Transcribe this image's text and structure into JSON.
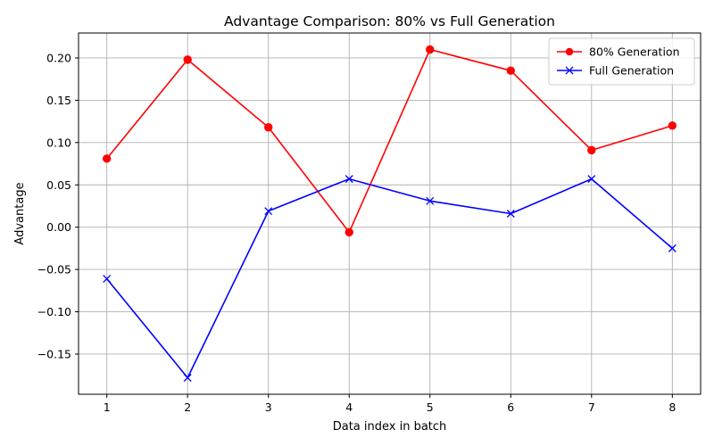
{
  "chart_data": {
    "type": "line",
    "title": "Advantage Comparison: 80% vs Full Generation",
    "xlabel": "Data index in batch",
    "ylabel": "Advantage",
    "x": [
      1,
      2,
      3,
      4,
      5,
      6,
      7,
      8
    ],
    "x_ticks": [
      "1",
      "2",
      "3",
      "4",
      "5",
      "6",
      "7",
      "8"
    ],
    "y_ticks": [
      "0.20",
      "0.15",
      "0.10",
      "0.05",
      "0.00",
      "−0.05",
      "−0.10",
      "−0.15"
    ],
    "y_tick_values": [
      0.2,
      0.15,
      0.1,
      0.05,
      0.0,
      -0.05,
      -0.1,
      -0.15
    ],
    "xlim": [
      0.65,
      8.35
    ],
    "ylim": [
      -0.1975,
      0.2295
    ],
    "grid": true,
    "legend_position": "top-right",
    "series": [
      {
        "name": "80% Generation",
        "color": "#ff0000",
        "marker": "circle",
        "values": [
          0.081,
          0.198,
          0.118,
          -0.006,
          0.21,
          0.185,
          0.091,
          0.12
        ]
      },
      {
        "name": "Full Generation",
        "color": "#0000ff",
        "marker": "x",
        "values": [
          -0.061,
          -0.178,
          0.019,
          0.057,
          0.031,
          0.016,
          0.057,
          -0.025
        ]
      }
    ]
  }
}
